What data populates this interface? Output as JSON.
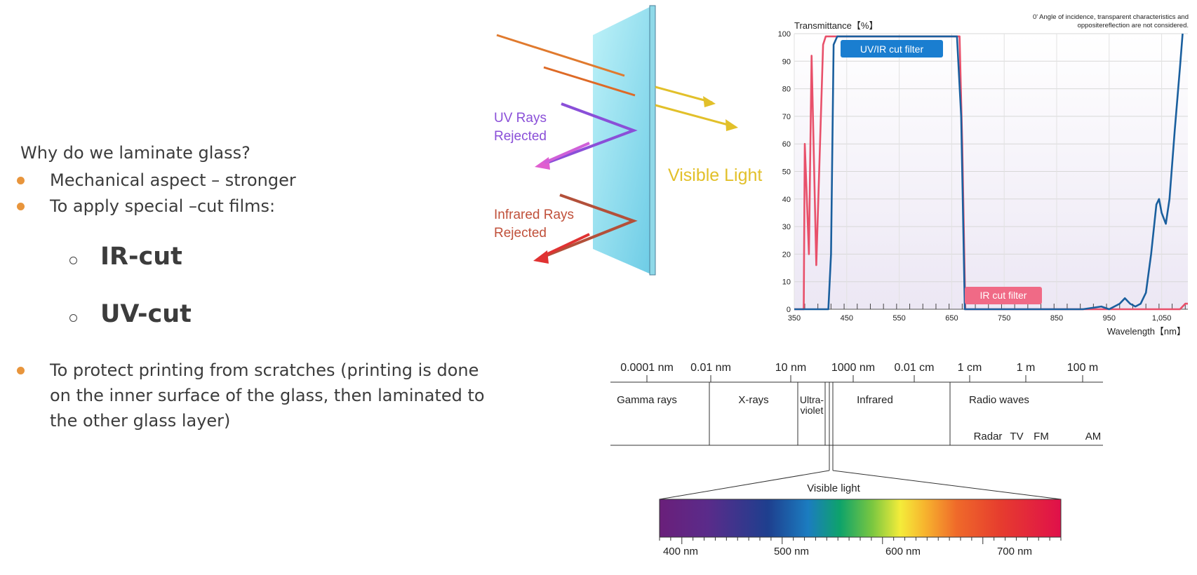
{
  "text": {
    "question": "Why do we laminate glass?",
    "bullets": [
      "Mechanical aspect – stronger",
      "To apply special –cut films:",
      "To protect printing from scratches (printing is done on the inner surface of the glass, then laminated to the other glass layer)"
    ],
    "subitems": [
      "IR-cut",
      "UV-cut"
    ]
  },
  "glass_diagram": {
    "uv_label": [
      "UV Rays",
      "Rejected"
    ],
    "ir_label": [
      "Infrared Rays",
      "Rejected"
    ],
    "visible_label": "Visible Light",
    "colors": {
      "uv": "#8a4fd8",
      "ir": "#c0503a",
      "visible": "#e2c02a",
      "glass": "#7dd9ec"
    }
  },
  "chart_data": {
    "type": "line",
    "ylabel": "Transmittance【%】",
    "xlabel": "Wavelength【nm】",
    "note": [
      "0' Angle of incidence, transparent characteristics and",
      "oppositereflection are not considered."
    ],
    "xlim": [
      350,
      1100
    ],
    "ylim": [
      0,
      100
    ],
    "x_ticks": [
      "350",
      "450",
      "550",
      "650",
      "750",
      "850",
      "950",
      "1,050"
    ],
    "y_ticks": [
      "0",
      "10",
      "20",
      "30",
      "40",
      "50",
      "60",
      "70",
      "80",
      "90",
      "100"
    ],
    "series": [
      {
        "name": "UV/IR cut filter",
        "color": "#1a5f9e",
        "points": [
          [
            350,
            0
          ],
          [
            415,
            0
          ],
          [
            420,
            20
          ],
          [
            425,
            96
          ],
          [
            432,
            99
          ],
          [
            530,
            99
          ],
          [
            660,
            99
          ],
          [
            668,
            70
          ],
          [
            675,
            0
          ],
          [
            900,
            0
          ],
          [
            935,
            1
          ],
          [
            950,
            0
          ],
          [
            970,
            2
          ],
          [
            980,
            4
          ],
          [
            990,
            2
          ],
          [
            1000,
            1
          ],
          [
            1010,
            2
          ],
          [
            1020,
            6
          ],
          [
            1030,
            20
          ],
          [
            1040,
            38
          ],
          [
            1045,
            40
          ],
          [
            1050,
            35
          ],
          [
            1058,
            31
          ],
          [
            1065,
            40
          ],
          [
            1075,
            65
          ],
          [
            1085,
            88
          ],
          [
            1090,
            100
          ]
        ]
      },
      {
        "name": "IR cut filter",
        "color": "#e8506a",
        "points": [
          [
            350,
            0
          ],
          [
            368,
            0
          ],
          [
            370,
            60
          ],
          [
            378,
            20
          ],
          [
            383,
            92
          ],
          [
            392,
            16
          ],
          [
            405,
            96
          ],
          [
            410,
            99
          ],
          [
            425,
            99
          ],
          [
            665,
            99
          ],
          [
            670,
            60
          ],
          [
            676,
            0
          ],
          [
            1085,
            0
          ],
          [
            1095,
            2
          ],
          [
            1100,
            2
          ]
        ]
      }
    ]
  },
  "spectrum": {
    "top_scale": [
      "0.0001 nm",
      "0.01 nm",
      "10 nm",
      "1000 nm",
      "0.01 cm",
      "1 cm",
      "1 m",
      "100 m"
    ],
    "bands": [
      "Gamma rays",
      "X-rays",
      "Ultra-",
      "violet",
      "Infrared",
      "Radio waves"
    ],
    "radio_sub": [
      "Radar",
      "TV",
      "FM",
      "AM"
    ],
    "visible_title": "Visible light",
    "bottom_scale": [
      "400 nm",
      "500 nm",
      "600 nm",
      "700 nm"
    ]
  }
}
